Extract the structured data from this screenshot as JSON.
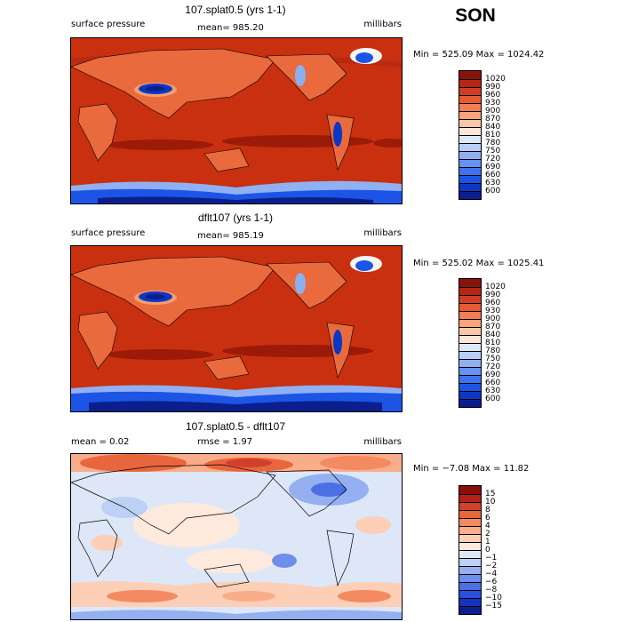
{
  "season": "SON",
  "colors": {
    "abs_levels": [
      "#0a1f8c",
      "#0e36c4",
      "#1c55e6",
      "#3b74ee",
      "#6692f2",
      "#90b0f4",
      "#b8cef6",
      "#dde7f8",
      "#fbe6d8",
      "#fcc7a6",
      "#f9a47a",
      "#f27e52",
      "#e65a33",
      "#d23d22",
      "#b62613",
      "#8a1208"
    ],
    "diff_levels": [
      "#0a1f8c",
      "#1532c0",
      "#2a4fdc",
      "#4c6fe6",
      "#6f8eea",
      "#95b0f0",
      "#bdd0f5",
      "#dde7f8",
      "#fdeadd",
      "#fccfb6",
      "#f9ad8a",
      "#f38a62",
      "#e8663e",
      "#d3402a",
      "#b42018",
      "#8a0e0a"
    ]
  },
  "chart_data": [
    {
      "type": "heatmap",
      "title": "107.splat0.5 (yrs 1-1)",
      "variable": "surface pressure",
      "units": "millibars",
      "mean_label": "mean= 985.20",
      "mean": 985.2,
      "min": 525.09,
      "max": 1024.42,
      "minmax_label": "Min = 525.09 Max = 1024.42",
      "levels": [
        600,
        630,
        660,
        690,
        720,
        750,
        780,
        810,
        840,
        870,
        900,
        930,
        960,
        990,
        1020
      ],
      "level_labels": [
        "600",
        "630",
        "660",
        "690",
        "720",
        "750",
        "780",
        "810",
        "840",
        "870",
        "900",
        "930",
        "960",
        "990",
        "1020"
      ]
    },
    {
      "type": "heatmap",
      "title": "dflt107 (yrs 1-1)",
      "variable": "surface pressure",
      "units": "millibars",
      "mean_label": "mean= 985.19",
      "mean": 985.19,
      "min": 525.02,
      "max": 1025.41,
      "minmax_label": "Min = 525.02 Max = 1025.41",
      "levels": [
        600,
        630,
        660,
        690,
        720,
        750,
        780,
        810,
        840,
        870,
        900,
        930,
        960,
        990,
        1020
      ],
      "level_labels": [
        "600",
        "630",
        "660",
        "690",
        "720",
        "750",
        "780",
        "810",
        "840",
        "870",
        "900",
        "930",
        "960",
        "990",
        "1020"
      ]
    },
    {
      "type": "heatmap",
      "title": "107.splat0.5 - dflt107",
      "units": "millibars",
      "mean_label": "mean = 0.02",
      "mean": 0.02,
      "rmse_label": "rmse = 1.97",
      "rmse": 1.97,
      "min": -7.08,
      "max": 11.82,
      "minmax_label": "Min = −7.08 Max = 11.82",
      "levels": [
        -15,
        -10,
        -8,
        -6,
        -4,
        -2,
        -1,
        0,
        1,
        2,
        4,
        6,
        8,
        10,
        15
      ],
      "level_labels": [
        "−15",
        "−10",
        "−8",
        "−6",
        "−4",
        "−2",
        "−1",
        "0",
        "1",
        "2",
        "4",
        "6",
        "8",
        "10",
        "15"
      ]
    }
  ]
}
